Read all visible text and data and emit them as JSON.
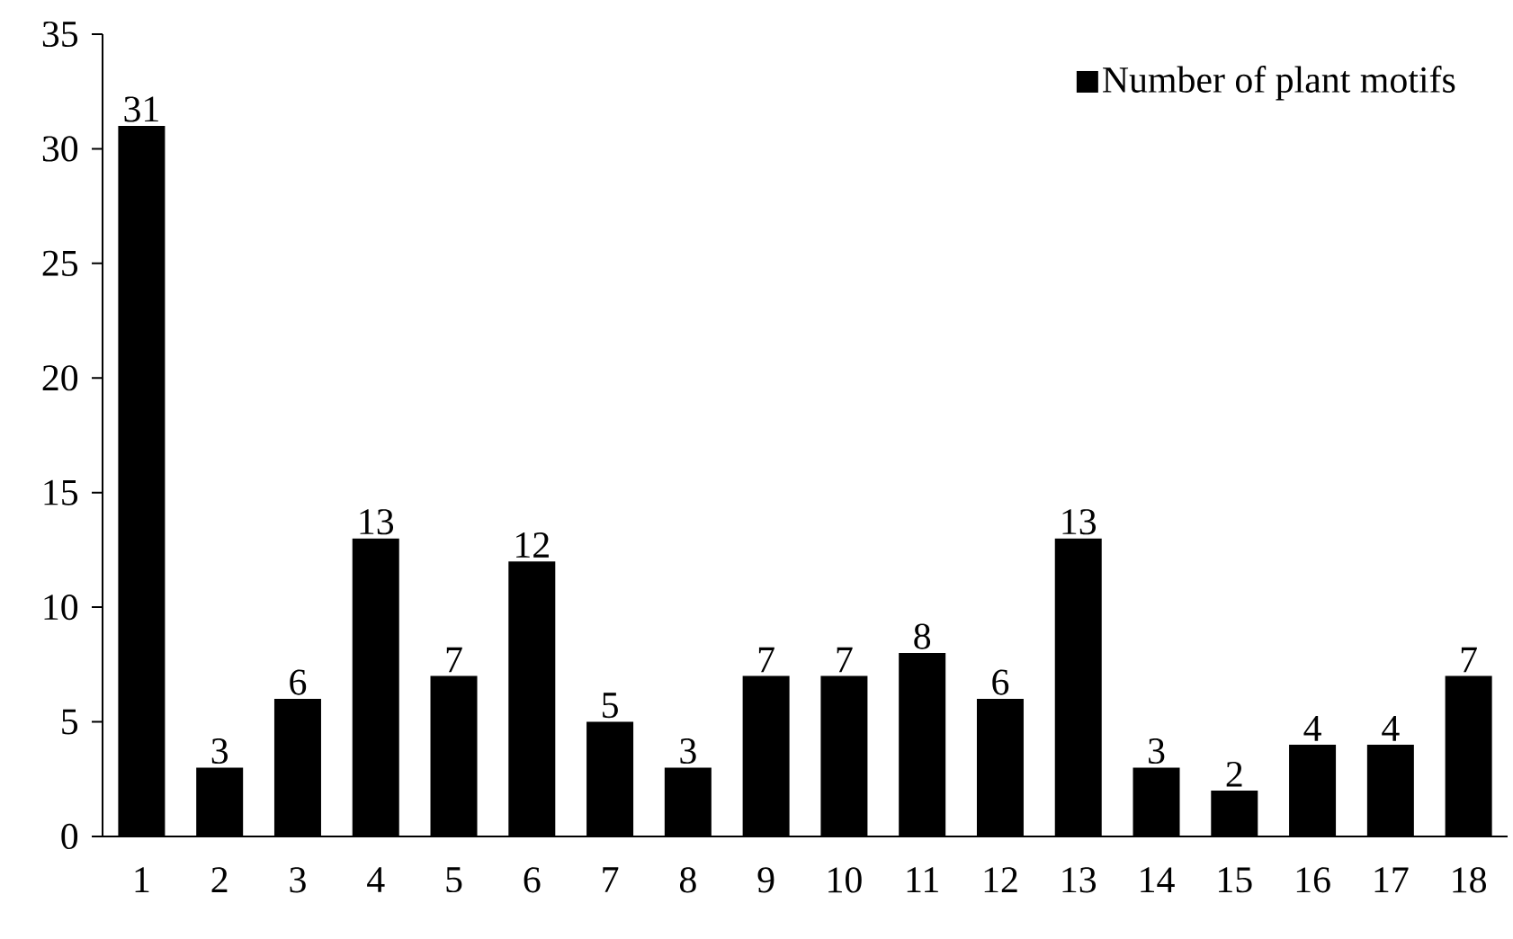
{
  "chart_data": {
    "type": "bar",
    "categories": [
      "1",
      "2",
      "3",
      "4",
      "5",
      "6",
      "7",
      "8",
      "9",
      "10",
      "11",
      "12",
      "13",
      "14",
      "15",
      "16",
      "17",
      "18"
    ],
    "series": [
      {
        "name": "Number of plant motifs",
        "color": "#000000",
        "values": [
          31,
          3,
          6,
          13,
          7,
          12,
          5,
          3,
          7,
          7,
          8,
          6,
          13,
          3,
          2,
          4,
          4,
          7
        ]
      }
    ],
    "ylim": [
      0,
      35
    ],
    "yticks": [
      0,
      5,
      10,
      15,
      20,
      25,
      30,
      35
    ],
    "data_labels": true,
    "legend": "top right",
    "grid": false
  }
}
